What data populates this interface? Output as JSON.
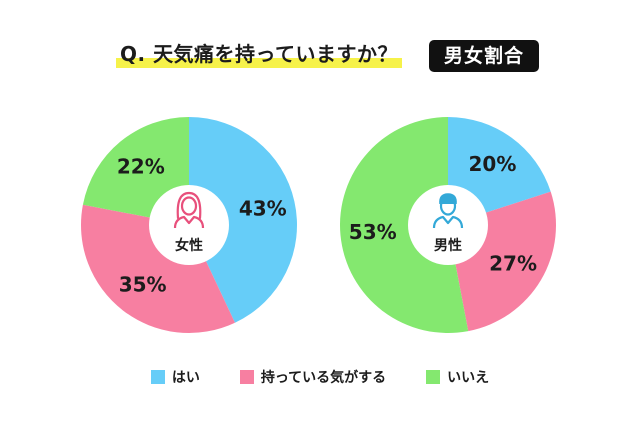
{
  "header": {
    "question": "Q. 天気痛を持っていますか？",
    "badge": "男女割合"
  },
  "colors": {
    "yes": "#66cdf8",
    "have_slightly": "#f77fa1",
    "no": "#84e86f",
    "female_icon": "#e8507c",
    "male_icon": "#33a9d8"
  },
  "chart_data": [
    {
      "type": "pie",
      "center_label": "女性",
      "icon": "female-person-icon",
      "categories": [
        "はい",
        "持っている気がする",
        "いいえ"
      ],
      "values": [
        43,
        35,
        22
      ],
      "labels": [
        "43%",
        "35%",
        "22%"
      ]
    },
    {
      "type": "pie",
      "center_label": "男性",
      "icon": "male-person-icon",
      "categories": [
        "はい",
        "持っている気がする",
        "いいえ"
      ],
      "values": [
        20,
        27,
        53
      ],
      "labels": [
        "20%",
        "27%",
        "53%"
      ]
    }
  ],
  "legend": {
    "placement": "bottom",
    "items": [
      {
        "label": "はい",
        "color": "#66cdf8"
      },
      {
        "label": "持っている気がする",
        "color": "#f77fa1"
      },
      {
        "label": "いいえ",
        "color": "#84e86f"
      }
    ]
  }
}
